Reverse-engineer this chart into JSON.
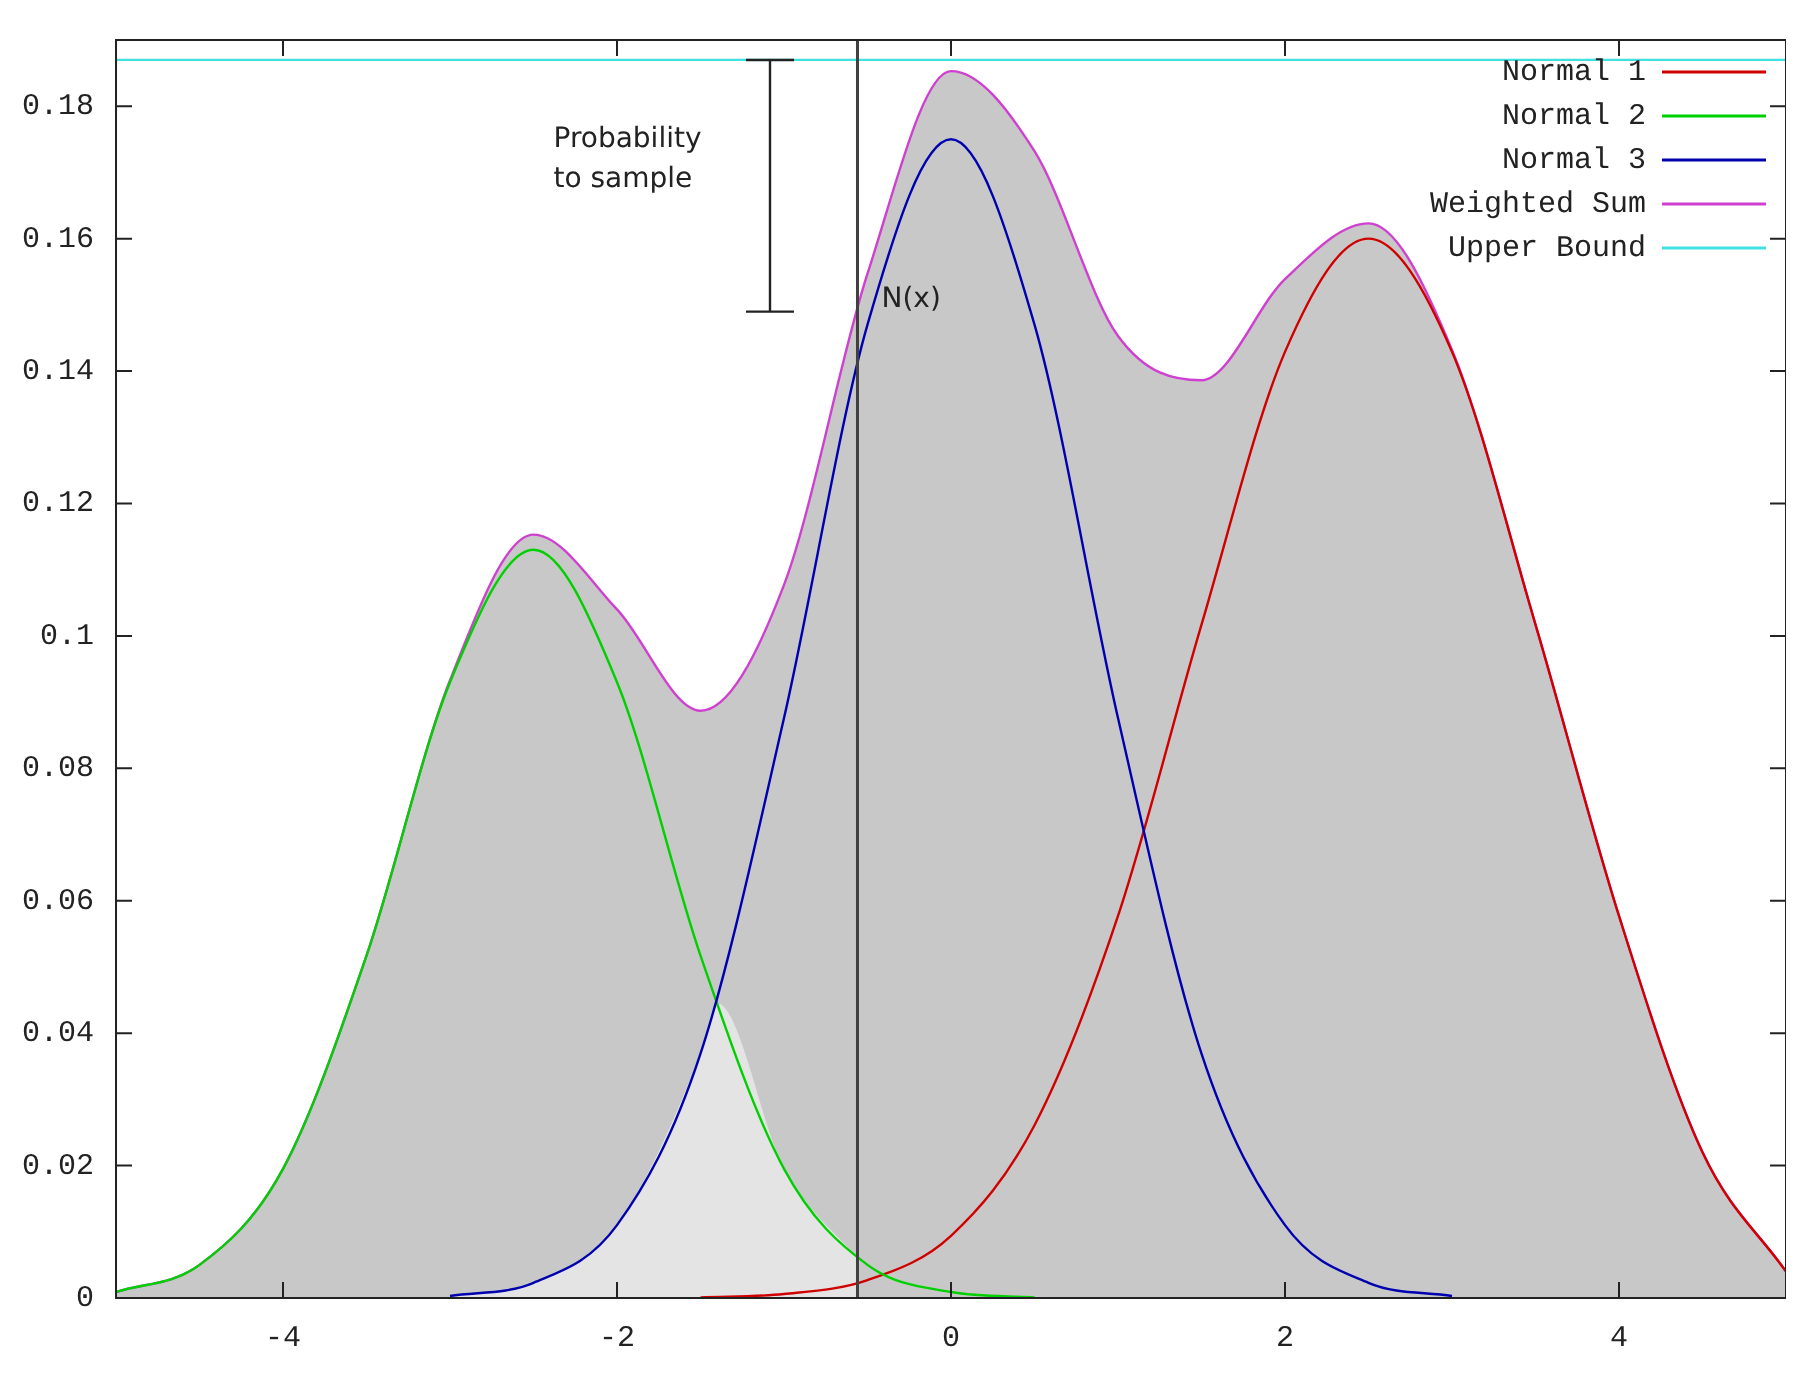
{
  "chart_data": {
    "type": "line",
    "x": [
      -5,
      -4.5,
      -4,
      -3.5,
      -3,
      -2.5,
      -2,
      -1.5,
      -1,
      -0.5,
      0,
      0.5,
      1,
      1.5,
      2,
      2.5,
      3,
      3.5,
      4,
      4.5,
      5
    ],
    "series": [
      {
        "name": "Normal 1",
        "color": "#d00000",
        "values": [
          null,
          null,
          null,
          null,
          null,
          null,
          null,
          0.0001,
          0.0006,
          0.0027,
          0.0094,
          0.0261,
          0.0577,
          0.1017,
          0.1429,
          0.16,
          0.1429,
          0.1017,
          0.0577,
          0.022,
          0.004
        ]
      },
      {
        "name": "Normal 2",
        "color": "#00d000",
        "values": [
          0.0009,
          0.005,
          0.0195,
          0.0517,
          0.093,
          0.113,
          0.093,
          0.0517,
          0.0195,
          0.005,
          0.0009,
          0.0001,
          null,
          null,
          null,
          null,
          null,
          null,
          null,
          null,
          null
        ]
      },
      {
        "name": "Normal 3",
        "color": "#0000b0",
        "values": [
          null,
          null,
          null,
          null,
          0.0003,
          0.0023,
          0.011,
          0.0369,
          0.0876,
          0.147,
          0.175,
          0.147,
          0.0876,
          0.0369,
          0.011,
          0.0023,
          0.0003,
          null,
          null,
          null,
          null
        ]
      },
      {
        "name": "Weighted Sum",
        "type": "area",
        "color": "#d040d0",
        "values": [
          0.0009,
          0.005,
          0.0195,
          0.0517,
          0.0933,
          0.1153,
          0.104,
          0.0887,
          0.1077,
          0.1547,
          0.1853,
          0.1732,
          0.1453,
          0.1386,
          0.1539,
          0.1623,
          0.1432,
          0.1017,
          0.0577,
          0.022,
          0.004
        ]
      },
      {
        "name": "Upper Bound",
        "color": "#40e0e0",
        "x": [
          -5,
          5
        ],
        "values": [
          0.187,
          0.187
        ]
      },
      {
        "type": "area",
        "color": "#e4e4e4",
        "x": [
          -3,
          -2.5,
          -2,
          -1.5,
          -1.4,
          -1,
          -0.56
        ],
        "values": [
          0.0003,
          0.0023,
          0.011,
          0.0369,
          0.0445,
          0.0195,
          0.006
        ]
      }
    ],
    "xlim": [
      -5,
      5
    ],
    "xticks": [
      -4,
      -2,
      0,
      2,
      4
    ],
    "ylim": [
      0,
      0.19
    ],
    "yticks": [
      0,
      0.02,
      0.04,
      0.06,
      0.08,
      0.1,
      0.12,
      0.14,
      0.16,
      0.18
    ],
    "ref_lines": [
      {
        "axis": "x",
        "value": -0.56,
        "color": "#404040"
      }
    ],
    "annotations": [
      "Probability to sample",
      {
        "text": "N(x)",
        "x": -0.56,
        "y": 0.149
      }
    ],
    "legend": "top right",
    "marker": "none",
    "line_style": "solid"
  }
}
